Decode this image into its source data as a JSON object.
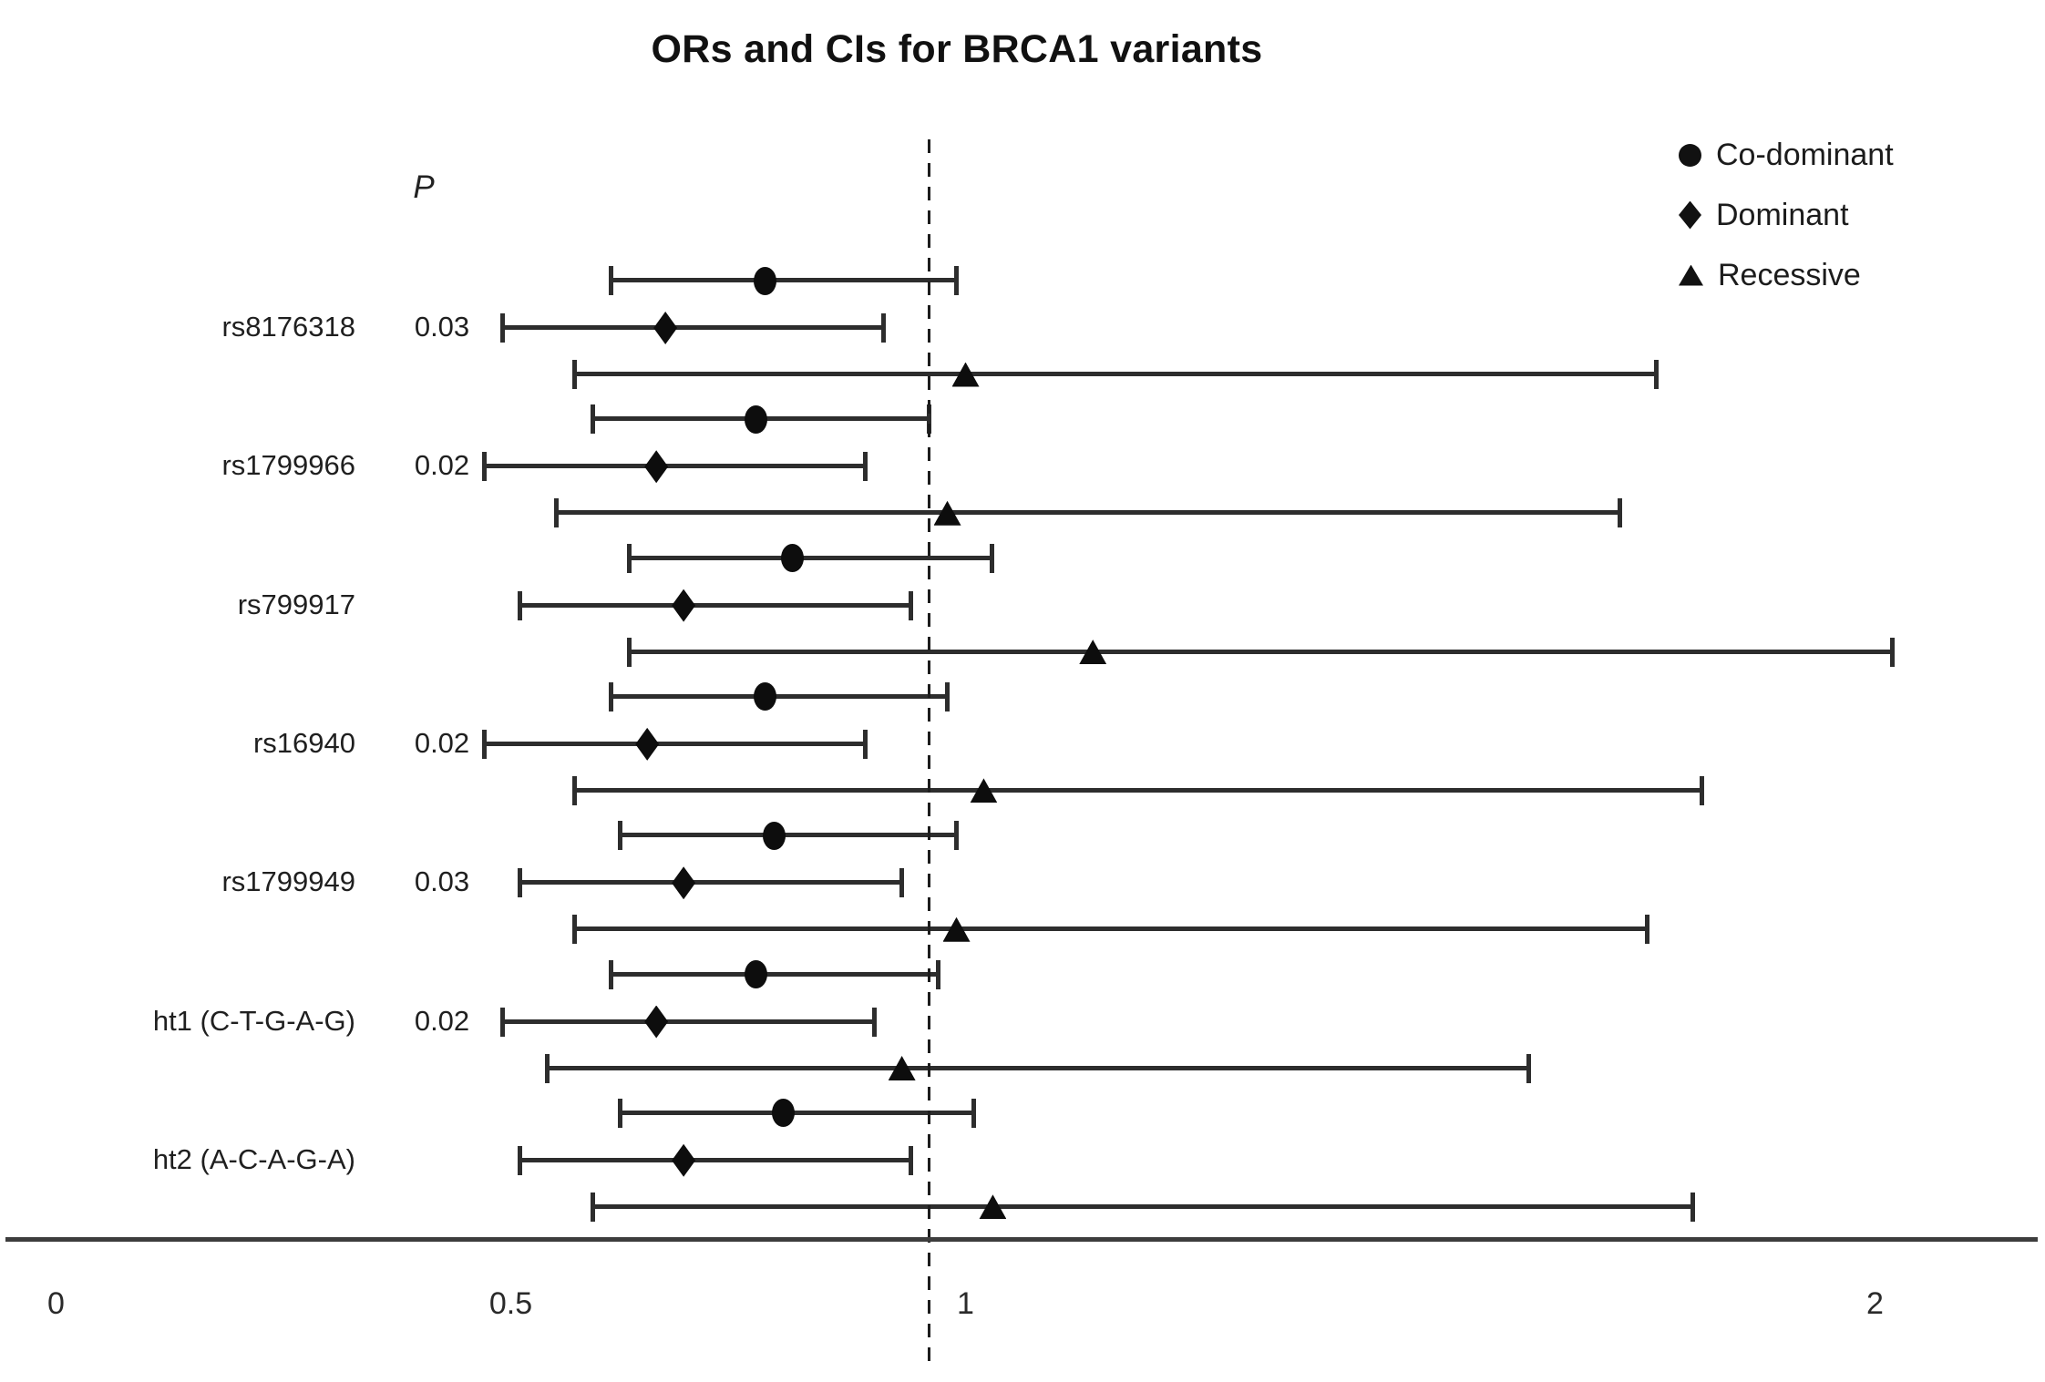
{
  "chart_data": {
    "type": "forest",
    "title": "ORs and CIs for BRCA1 variants",
    "p_column_header": "P",
    "legend": [
      {
        "label": "Co-dominant",
        "marker": "circle"
      },
      {
        "label": "Dominant",
        "marker": "diamond"
      },
      {
        "label": "Recessive",
        "marker": "triangle"
      }
    ],
    "x_axis": {
      "ticks": [
        0,
        0.5,
        1,
        2
      ],
      "tick_labels": [
        "0",
        "0.5",
        "1",
        "2"
      ],
      "min": 0,
      "max": 2.18,
      "reference_line_nominal": 1,
      "reference_line_drawn_at": 0.96
    },
    "marker_color": "#0d0d0d",
    "line_color": "#2d2d2d",
    "rows": [
      {
        "label": "rs8176318",
        "p": "0.03",
        "series": [
          {
            "model": "Co-dominant",
            "or": 0.78,
            "ci": [
              0.61,
              0.99
            ]
          },
          {
            "model": "Dominant",
            "or": 0.67,
            "ci": [
              0.49,
              0.91
            ]
          },
          {
            "model": "Recessive",
            "or": 1.0,
            "ci": [
              0.57,
              1.76
            ]
          }
        ]
      },
      {
        "label": "rs1799966",
        "p": "0.02",
        "series": [
          {
            "model": "Co-dominant",
            "or": 0.77,
            "ci": [
              0.59,
              0.96
            ]
          },
          {
            "model": "Dominant",
            "or": 0.66,
            "ci": [
              0.47,
              0.89
            ]
          },
          {
            "model": "Recessive",
            "or": 0.98,
            "ci": [
              0.55,
              1.72
            ]
          }
        ]
      },
      {
        "label": "rs799917",
        "p": "",
        "series": [
          {
            "model": "Co-dominant",
            "or": 0.81,
            "ci": [
              0.63,
              1.03
            ]
          },
          {
            "model": "Dominant",
            "or": 0.69,
            "ci": [
              0.51,
              0.94
            ]
          },
          {
            "model": "Recessive",
            "or": 1.14,
            "ci": [
              0.63,
              2.02
            ]
          }
        ]
      },
      {
        "label": "rs16940",
        "p": "0.02",
        "series": [
          {
            "model": "Co-dominant",
            "or": 0.78,
            "ci": [
              0.61,
              0.98
            ]
          },
          {
            "model": "Dominant",
            "or": 0.65,
            "ci": [
              0.47,
              0.89
            ]
          },
          {
            "model": "Recessive",
            "or": 1.02,
            "ci": [
              0.57,
              1.81
            ]
          }
        ]
      },
      {
        "label": "rs1799949",
        "p": "0.03",
        "series": [
          {
            "model": "Co-dominant",
            "or": 0.79,
            "ci": [
              0.62,
              0.99
            ]
          },
          {
            "model": "Dominant",
            "or": 0.69,
            "ci": [
              0.51,
              0.93
            ]
          },
          {
            "model": "Recessive",
            "or": 0.99,
            "ci": [
              0.57,
              1.75
            ]
          }
        ]
      },
      {
        "label": "ht1 (C-T-G-A-G)",
        "p": "0.02",
        "series": [
          {
            "model": "Co-dominant",
            "or": 0.77,
            "ci": [
              0.61,
              0.97
            ]
          },
          {
            "model": "Dominant",
            "or": 0.66,
            "ci": [
              0.49,
              0.9
            ]
          },
          {
            "model": "Recessive",
            "or": 0.93,
            "ci": [
              0.54,
              1.62
            ]
          }
        ]
      },
      {
        "label": "ht2 (A-C-A-G-A)",
        "p": "",
        "series": [
          {
            "model": "Co-dominant",
            "or": 0.8,
            "ci": [
              0.62,
              1.01
            ]
          },
          {
            "model": "Dominant",
            "or": 0.69,
            "ci": [
              0.51,
              0.94
            ]
          },
          {
            "model": "Recessive",
            "or": 1.03,
            "ci": [
              0.59,
              1.8
            ]
          }
        ]
      }
    ]
  }
}
